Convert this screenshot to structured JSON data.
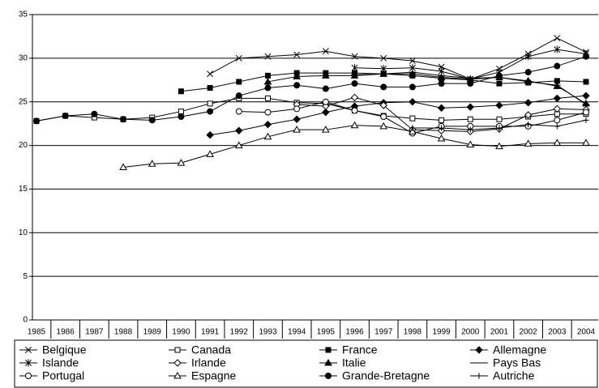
{
  "chart_data": {
    "type": "line",
    "categories": [
      "1985",
      "1986",
      "1987",
      "1988",
      "1989",
      "1990",
      "1991",
      "1992",
      "1993",
      "1994",
      "1995",
      "1996",
      "1997",
      "1998",
      "1999",
      "2000",
      "2001",
      "2002",
      "2003",
      "2004"
    ],
    "ylim": [
      0,
      35
    ],
    "yticks": [
      0,
      5,
      10,
      15,
      20,
      25,
      30,
      35
    ],
    "grid": true,
    "series": [
      {
        "name": "Belgique",
        "color": "#000000",
        "marker": "x",
        "values": [
          null,
          null,
          null,
          null,
          null,
          null,
          28.2,
          30.0,
          30.2,
          30.4,
          30.8,
          30.2,
          30.0,
          29.7,
          29.0,
          27.6,
          28.8,
          30.5,
          32.3,
          30.7
        ]
      },
      {
        "name": "Canada",
        "color": "#000000",
        "marker": "square-open",
        "values": [
          22.8,
          23.4,
          23.2,
          23.0,
          23.2,
          23.9,
          24.8,
          25.4,
          25.4,
          24.9,
          24.8,
          24.0,
          23.4,
          23.1,
          22.9,
          23.0,
          23.0,
          23.3,
          23.6,
          23.6
        ]
      },
      {
        "name": "France",
        "color": "#000000",
        "marker": "square",
        "values": [
          null,
          null,
          null,
          null,
          null,
          26.2,
          26.6,
          27.3,
          28.0,
          28.3,
          28.3,
          28.3,
          28.2,
          28.0,
          27.7,
          27.5,
          27.1,
          27.2,
          27.4,
          27.3
        ]
      },
      {
        "name": "Allemagne",
        "color": "#000000",
        "marker": "diamond",
        "values": [
          null,
          null,
          null,
          null,
          null,
          null,
          21.2,
          21.7,
          22.4,
          23.0,
          23.8,
          24.5,
          24.9,
          25.0,
          24.3,
          24.4,
          24.6,
          24.9,
          25.4,
          25.7
        ]
      },
      {
        "name": "Islande",
        "color": "#000000",
        "marker": "star",
        "values": [
          null,
          null,
          null,
          null,
          null,
          null,
          null,
          null,
          null,
          null,
          null,
          28.9,
          28.8,
          28.9,
          28.5,
          27.6,
          28.4,
          30.2,
          31.0,
          30.5
        ]
      },
      {
        "name": "Irlande",
        "color": "#000000",
        "marker": "diamond-open",
        "values": [
          null,
          null,
          null,
          null,
          null,
          null,
          null,
          null,
          null,
          24.7,
          24.5,
          25.5,
          24.6,
          21.8,
          21.7,
          21.6,
          21.9,
          23.5,
          24.2,
          24.1
        ]
      },
      {
        "name": "Italie",
        "color": "#000000",
        "marker": "triangle",
        "values": [
          null,
          null,
          null,
          null,
          null,
          null,
          null,
          null,
          27.3,
          27.9,
          28.0,
          28.0,
          28.2,
          28.2,
          27.8,
          27.6,
          27.8,
          27.4,
          26.8,
          24.8
        ]
      },
      {
        "name": "Pays Bas",
        "color": "#000000",
        "marker": "dash",
        "values": [
          null,
          null,
          null,
          null,
          null,
          null,
          null,
          null,
          null,
          null,
          null,
          28.1,
          28.2,
          28.4,
          28.0,
          27.7,
          27.8,
          27.3,
          26.9,
          24.7
        ]
      },
      {
        "name": "Portugal",
        "color": "#000000",
        "marker": "circle-open",
        "values": [
          null,
          null,
          null,
          null,
          null,
          null,
          null,
          23.9,
          23.8,
          24.2,
          25.0,
          24.0,
          23.3,
          21.4,
          22.2,
          22.2,
          22.2,
          22.2,
          22.9,
          23.8
        ]
      },
      {
        "name": "Espagne",
        "color": "#000000",
        "marker": "triangle-open",
        "values": [
          null,
          null,
          null,
          17.5,
          17.9,
          18.0,
          19.0,
          20.0,
          21.0,
          21.8,
          21.8,
          22.3,
          22.2,
          21.6,
          20.8,
          20.1,
          19.9,
          20.2,
          20.3,
          20.3
        ]
      },
      {
        "name": "Grande-Bretagne",
        "color": "#000000",
        "marker": "circle",
        "values": [
          22.8,
          23.4,
          23.6,
          23.0,
          22.9,
          23.3,
          23.9,
          25.7,
          26.6,
          26.9,
          26.5,
          27.1,
          26.7,
          26.7,
          27.1,
          27.1,
          28.0,
          28.4,
          29.1,
          30.2
        ]
      },
      {
        "name": "Autriche",
        "color": "#000000",
        "marker": "plus",
        "values": [
          null,
          null,
          null,
          null,
          null,
          null,
          null,
          null,
          null,
          null,
          null,
          null,
          null,
          22.0,
          22.0,
          21.8,
          22.0,
          22.4,
          22.2,
          22.9
        ]
      }
    ]
  }
}
